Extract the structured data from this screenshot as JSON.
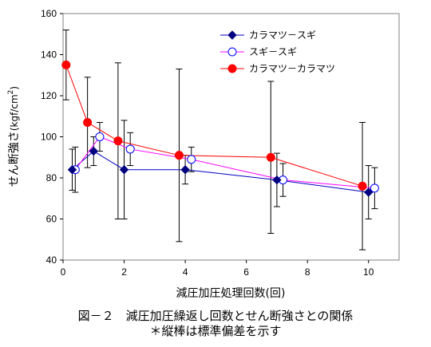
{
  "chart_data": {
    "type": "line",
    "xlabel": "減圧加圧処理回数(回)",
    "ylabel": "せん断強さ",
    "ylabel_unit": "(kgf/cm",
    "ylabel_unit_sup": "2",
    "ylabel_unit_close": ")",
    "xlim": [
      0,
      11
    ],
    "ylim": [
      40,
      160
    ],
    "xticks": [
      0,
      2,
      4,
      6,
      8,
      10
    ],
    "yticks": [
      40,
      60,
      80,
      100,
      120,
      140,
      160
    ],
    "grid": false,
    "legend_position": "top-right",
    "series": [
      {
        "name": "カラマツ－スギ",
        "color": "#000080",
        "line_color": "#0000c0",
        "marker": "diamond",
        "x": [
          0.3,
          1.0,
          2.0,
          4.0,
          7.0,
          10.0
        ],
        "y": [
          84,
          93,
          84,
          84,
          79,
          73
        ],
        "err": [
          10,
          7,
          24,
          7,
          13,
          13
        ]
      },
      {
        "name": "スギ－スギ",
        "color": "#0000ff",
        "line_color": "#ff00ff",
        "marker": "open-circle",
        "x": [
          0.4,
          1.2,
          2.2,
          4.2,
          7.2,
          10.2
        ],
        "y": [
          84,
          100,
          94,
          89,
          79,
          75
        ],
        "err": [
          11,
          7,
          8,
          6,
          8,
          10
        ]
      },
      {
        "name": "カラマツ－カラマツ",
        "color": "#ff0000",
        "line_color": "#ff0000",
        "marker": "filled-circle",
        "x": [
          0.1,
          0.8,
          1.8,
          3.8,
          6.8,
          9.8
        ],
        "y": [
          135,
          107,
          98,
          91,
          90,
          76
        ],
        "err": [
          17,
          22,
          38,
          42,
          37,
          31
        ]
      }
    ]
  },
  "caption": {
    "title": "図－２　減圧加圧繰返し回数とせん断強さとの関係",
    "note": "＊縦棒は標準偏差を示す"
  }
}
